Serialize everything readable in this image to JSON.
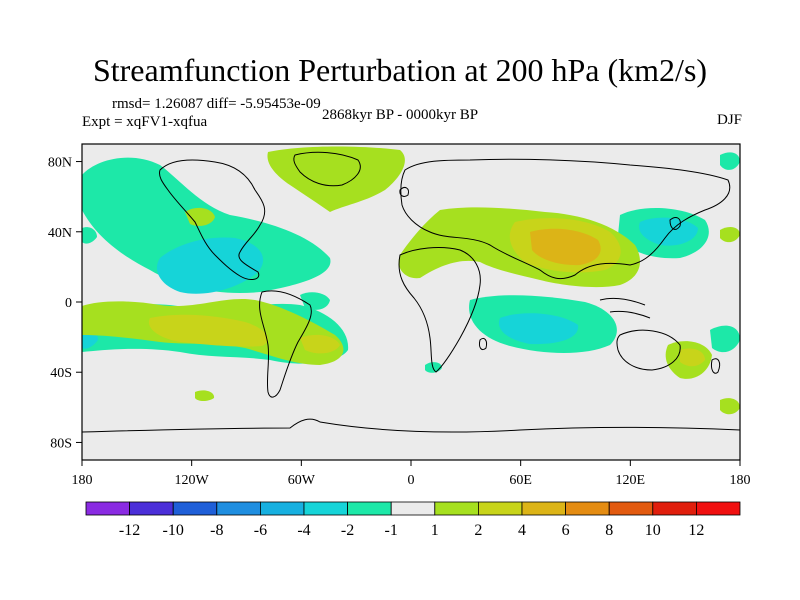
{
  "title": "Streamfunction Perturbation at 200 hPa (km2/s)",
  "stats_line": "rmsd= 1.26087 diff= -5.95453e-09",
  "experiment": "Expt = xqFV1-xqfua",
  "period": "2868kyr BP - 0000kyr BP",
  "season": "DJF",
  "axes": {
    "lon_ticks": [
      "180",
      "120W",
      "60W",
      "0",
      "60E",
      "120E",
      "180"
    ],
    "lat_ticks": [
      "80N",
      "40N",
      "0",
      "40S",
      "80S"
    ]
  },
  "colorbar": {
    "labels": [
      "-12",
      "-10",
      "-8",
      "-6",
      "-4",
      "-2",
      "-1",
      "1",
      "2",
      "4",
      "6",
      "8",
      "10",
      "12"
    ],
    "colors": [
      "#8a2be2",
      "#4b2fd8",
      "#1f5fd8",
      "#1f8ee0",
      "#17b0e0",
      "#16d4d8",
      "#1de8a8",
      "#ebebeb",
      "#a6e01f",
      "#c8d41a",
      "#dcb417",
      "#e48c12",
      "#e25a10",
      "#e01e0c",
      "#f01010"
    ]
  },
  "colors": {
    "background": "#ebebeb",
    "coast": "#000000"
  }
}
